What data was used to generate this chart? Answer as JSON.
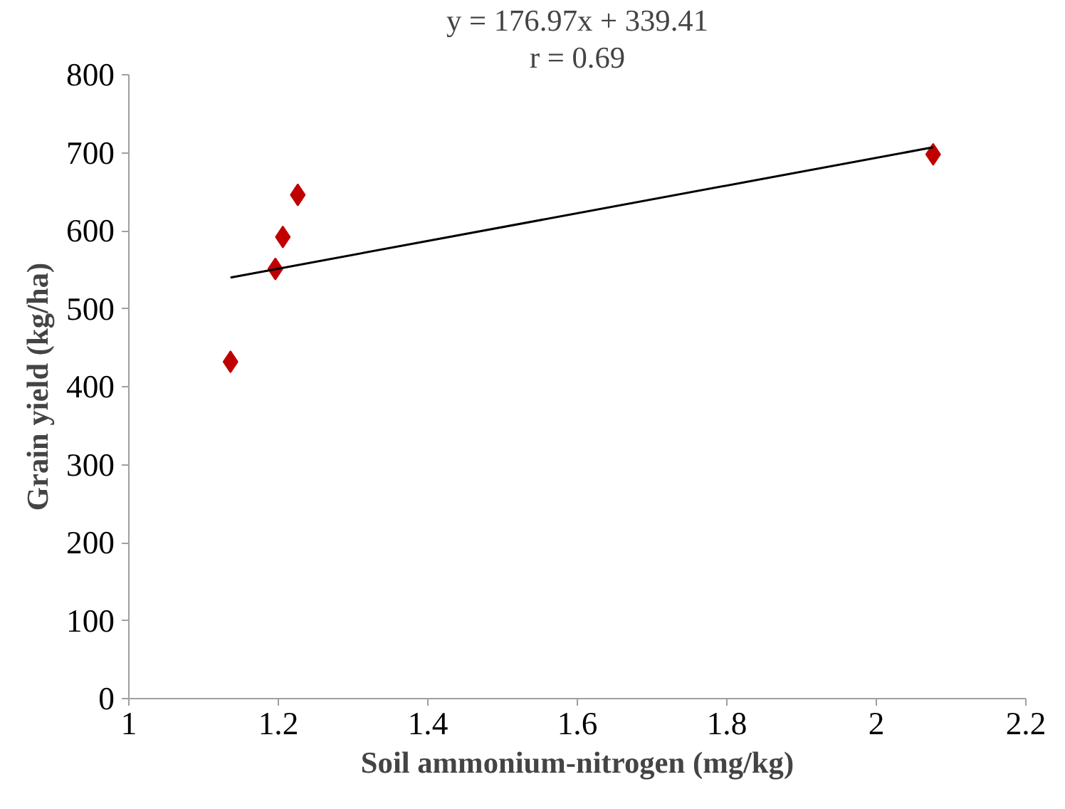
{
  "chart_data": {
    "type": "scatter",
    "xlabel": "Soil ammonium-nitrogen (mg/kg)",
    "ylabel": "Grain yield (kg/ha)",
    "annotations": [
      "y = 176.97x + 339.41",
      "r = 0.69"
    ],
    "x": [
      1.136,
      1.196,
      1.206,
      1.226,
      2.076
    ],
    "series": [
      {
        "color": "#c00000",
        "marker": "diamond",
        "values": [
          432,
          551,
          592,
          646,
          698
        ]
      },
      {
        "type": "line",
        "color": "#000000",
        "marker": "none",
        "x": [
          1.136,
          2.076
        ],
        "values": [
          540,
          707
        ]
      }
    ],
    "xlim": [
      1,
      2.2
    ],
    "xticks": [
      1,
      1.2,
      1.4,
      1.6,
      1.8,
      2,
      2.2
    ],
    "ylim": [
      0,
      800
    ],
    "yticks": [
      0,
      100,
      200,
      300,
      400,
      500,
      600,
      700,
      800
    ],
    "grid": false
  }
}
